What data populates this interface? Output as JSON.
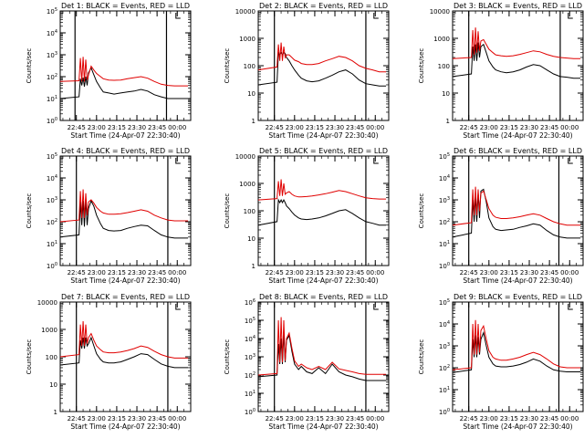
{
  "figure": {
    "xlabel": "Start Time (24-Apr-07 22:30:40)",
    "ylabel": "Counts/sec"
  },
  "style": {
    "events_color": "#000000",
    "lld_color": "#e00000",
    "background": "#ffffff"
  },
  "chart_data": [
    {
      "type": "line",
      "title": "Det 1: BLACK = Events, RED = LLD",
      "xlabel": "Start Time (24-Apr-07 22:30:40)",
      "ylabel": "Counts/sec",
      "yscale": "log",
      "ylim_exp": [
        0,
        5
      ],
      "ytick_style": "exp",
      "xlim": [
        "22:33",
        "00:10"
      ],
      "xticks": [
        "22:45",
        "23:00",
        "23:15",
        "23:30",
        "23:45",
        "00:00"
      ],
      "marker_lines": [
        "22:44",
        "23:52"
      ],
      "event_markers": [
        "23:59"
      ],
      "x_minutes": [
        0,
        14,
        15,
        16,
        17,
        18,
        19,
        20,
        21,
        23,
        25,
        27,
        30,
        32,
        36,
        40,
        45,
        50,
        55,
        60,
        65,
        70,
        75,
        80,
        85,
        90,
        95
      ],
      "series": [
        {
          "name": "Events",
          "color_key": "events",
          "values": [
            10,
            12,
            80,
            40,
            90,
            35,
            100,
            40,
            150,
            250,
            120,
            60,
            30,
            20,
            18,
            16,
            18,
            20,
            22,
            26,
            22,
            15,
            12,
            10,
            10,
            10,
            10
          ]
        },
        {
          "name": "LLD",
          "color_key": "lld",
          "values": [
            60,
            65,
            700,
            60,
            800,
            60,
            600,
            70,
            120,
            300,
            200,
            140,
            100,
            80,
            70,
            68,
            70,
            80,
            90,
            100,
            85,
            60,
            45,
            40,
            38,
            38,
            38
          ]
        }
      ]
    },
    {
      "type": "line",
      "title": "Det 2: BLACK = Events, RED = LLD",
      "xlabel": "Start Time (24-Apr-07 22:30:40)",
      "ylabel": "Counts/sec",
      "yscale": "log",
      "ylim_exp": [
        0,
        4
      ],
      "ytick_style": "plain",
      "xlim": [
        "22:33",
        "00:10"
      ],
      "xticks": [
        "22:45",
        "23:00",
        "23:15",
        "23:30",
        "23:45",
        "00:00"
      ],
      "marker_lines": [
        "22:45",
        "23:53"
      ],
      "event_markers": [
        "23:59"
      ],
      "x_minutes": [
        0,
        14,
        15,
        16,
        17,
        18,
        19,
        20,
        21,
        23,
        25,
        27,
        30,
        32,
        36,
        40,
        45,
        50,
        55,
        60,
        65,
        70,
        75,
        80,
        85,
        90,
        95
      ],
      "series": [
        {
          "name": "Events",
          "color_key": "events",
          "values": [
            20,
            25,
            300,
            250,
            300,
            250,
            300,
            280,
            200,
            150,
            100,
            70,
            45,
            35,
            28,
            26,
            28,
            35,
            45,
            60,
            70,
            50,
            30,
            22,
            20,
            18,
            18
          ]
        },
        {
          "name": "LLD",
          "color_key": "lld",
          "values": [
            70,
            90,
            600,
            150,
            700,
            150,
            500,
            200,
            250,
            250,
            200,
            160,
            140,
            120,
            110,
            110,
            120,
            150,
            180,
            220,
            200,
            150,
            100,
            80,
            70,
            60,
            60
          ]
        }
      ]
    },
    {
      "type": "line",
      "title": "Det 3: BLACK = Events, RED = LLD",
      "xlabel": "Start Time (24-Apr-07 22:30:40)",
      "ylabel": "Counts/sec",
      "yscale": "log",
      "ylim_exp": [
        0,
        4
      ],
      "ytick_style": "plain",
      "xlim": [
        "22:33",
        "00:10"
      ],
      "xticks": [
        "22:45",
        "23:00",
        "23:15",
        "23:30",
        "23:45",
        "00:00"
      ],
      "marker_lines": [
        "22:45",
        "23:53"
      ],
      "event_markers": [
        "23:59"
      ],
      "x_minutes": [
        0,
        14,
        15,
        16,
        17,
        18,
        19,
        20,
        21,
        23,
        25,
        27,
        30,
        32,
        36,
        40,
        45,
        50,
        55,
        60,
        65,
        70,
        75,
        80,
        85,
        90,
        95
      ],
      "series": [
        {
          "name": "Events",
          "color_key": "events",
          "values": [
            40,
            50,
            500,
            150,
            600,
            150,
            700,
            200,
            500,
            600,
            300,
            150,
            90,
            70,
            60,
            55,
            60,
            70,
            90,
            110,
            100,
            70,
            50,
            40,
            38,
            35,
            35
          ]
        },
        {
          "name": "LLD",
          "color_key": "lld",
          "values": [
            180,
            200,
            2000,
            250,
            2500,
            300,
            1800,
            350,
            800,
            900,
            600,
            400,
            300,
            250,
            230,
            220,
            230,
            260,
            300,
            350,
            320,
            260,
            220,
            200,
            190,
            180,
            180
          ]
        }
      ]
    },
    {
      "type": "line",
      "title": "Det 4: BLACK = Events, RED = LLD",
      "xlabel": "Start Time (24-Apr-07 22:30:40)",
      "ylabel": "Counts/sec",
      "yscale": "log",
      "ylim_exp": [
        0,
        5
      ],
      "ytick_style": "exp",
      "xlim": [
        "22:33",
        "00:10"
      ],
      "xticks": [
        "22:45",
        "23:00",
        "23:15",
        "23:30",
        "23:45",
        "00:00"
      ],
      "marker_lines": [
        "22:45",
        "23:53"
      ],
      "event_markers": [
        "23:59"
      ],
      "x_minutes": [
        0,
        14,
        15,
        16,
        17,
        18,
        19,
        20,
        21,
        23,
        25,
        27,
        30,
        32,
        36,
        40,
        45,
        50,
        55,
        60,
        65,
        70,
        75,
        80,
        85,
        90,
        95
      ],
      "series": [
        {
          "name": "Events",
          "color_key": "events",
          "values": [
            20,
            25,
            800,
            70,
            900,
            60,
            1000,
            70,
            400,
            900,
            500,
            200,
            80,
            50,
            40,
            38,
            40,
            50,
            60,
            70,
            65,
            40,
            25,
            20,
            18,
            18,
            18
          ]
        },
        {
          "name": "LLD",
          "color_key": "lld",
          "values": [
            100,
            120,
            2500,
            150,
            3000,
            150,
            2000,
            200,
            800,
            1000,
            700,
            450,
            300,
            250,
            220,
            220,
            230,
            260,
            300,
            350,
            300,
            200,
            150,
            120,
            110,
            110,
            110
          ]
        }
      ]
    },
    {
      "type": "line",
      "title": "Det 5: BLACK = Events, RED = LLD",
      "xlabel": "Start Time (24-Apr-07 22:30:40)",
      "ylabel": "Counts/sec",
      "yscale": "log",
      "ylim_exp": [
        0,
        4
      ],
      "ytick_style": "plain",
      "xlim": [
        "22:33",
        "00:10"
      ],
      "xticks": [
        "22:45",
        "23:00",
        "23:15",
        "23:30",
        "23:45",
        "00:00"
      ],
      "marker_lines": [
        "22:45",
        "23:53"
      ],
      "event_markers": [
        "23:59"
      ],
      "x_minutes": [
        0,
        14,
        15,
        16,
        17,
        18,
        19,
        20,
        21,
        23,
        25,
        27,
        30,
        32,
        36,
        40,
        45,
        50,
        55,
        60,
        65,
        70,
        75,
        80,
        85,
        90,
        95
      ],
      "series": [
        {
          "name": "Events",
          "color_key": "events",
          "values": [
            30,
            40,
            250,
            200,
            250,
            200,
            250,
            200,
            150,
            120,
            90,
            70,
            55,
            50,
            48,
            50,
            55,
            65,
            80,
            100,
            110,
            80,
            55,
            40,
            35,
            30,
            30
          ]
        },
        {
          "name": "LLD",
          "color_key": "lld",
          "values": [
            250,
            280,
            1200,
            350,
            1400,
            350,
            1000,
            400,
            450,
            500,
            400,
            350,
            320,
            320,
            330,
            350,
            380,
            420,
            480,
            550,
            500,
            420,
            350,
            300,
            280,
            270,
            270
          ]
        }
      ]
    },
    {
      "type": "line",
      "title": "Det 6: BLACK = Events, RED = LLD",
      "xlabel": "Start Time (24-Apr-07 22:30:40)",
      "ylabel": "Counts/sec",
      "yscale": "log",
      "ylim_exp": [
        0,
        5
      ],
      "ytick_style": "exp",
      "xlim": [
        "22:33",
        "00:10"
      ],
      "xticks": [
        "22:45",
        "23:00",
        "23:15",
        "23:30",
        "23:45",
        "00:00"
      ],
      "marker_lines": [
        "22:45",
        "23:52"
      ],
      "event_markers": [
        "23:59"
      ],
      "x_minutes": [
        0,
        14,
        15,
        16,
        17,
        18,
        19,
        20,
        21,
        23,
        25,
        27,
        30,
        32,
        36,
        40,
        45,
        50,
        55,
        60,
        65,
        70,
        75,
        80,
        85,
        90,
        95
      ],
      "series": [
        {
          "name": "Events",
          "color_key": "events",
          "values": [
            20,
            30,
            1000,
            100,
            1500,
            100,
            2000,
            150,
            2500,
            3000,
            800,
            150,
            60,
            45,
            40,
            42,
            45,
            55,
            65,
            80,
            70,
            40,
            25,
            20,
            18,
            18,
            18
          ]
        },
        {
          "name": "LLD",
          "color_key": "lld",
          "values": [
            70,
            90,
            3000,
            200,
            4000,
            200,
            3000,
            300,
            2000,
            2500,
            1000,
            400,
            200,
            160,
            140,
            140,
            150,
            170,
            200,
            230,
            200,
            140,
            100,
            80,
            70,
            70,
            70
          ]
        }
      ]
    },
    {
      "type": "line",
      "title": "Det 7: BLACK = Events, RED = LLD",
      "xlabel": "Start Time (24-Apr-07 22:30:40)",
      "ylabel": "Counts/sec",
      "yscale": "log",
      "ylim_exp": [
        0,
        4
      ],
      "ytick_style": "plain",
      "xlim": [
        "22:33",
        "00:10"
      ],
      "xticks": [
        "22:45",
        "23:00",
        "23:15",
        "23:30",
        "23:45",
        "00:00"
      ],
      "marker_lines": [
        "22:45",
        "23:53"
      ],
      "event_markers": [
        "23:59"
      ],
      "x_minutes": [
        0,
        14,
        15,
        16,
        17,
        18,
        19,
        20,
        21,
        23,
        25,
        27,
        30,
        32,
        36,
        40,
        45,
        50,
        55,
        60,
        65,
        70,
        75,
        80,
        85,
        90,
        95
      ],
      "series": [
        {
          "name": "Events",
          "color_key": "events",
          "values": [
            50,
            60,
            400,
            200,
            500,
            200,
            500,
            250,
            300,
            500,
            250,
            130,
            80,
            65,
            60,
            60,
            65,
            80,
            100,
            130,
            120,
            80,
            55,
            45,
            40,
            40,
            40
          ]
        },
        {
          "name": "LLD",
          "color_key": "lld",
          "values": [
            100,
            120,
            1500,
            250,
            2000,
            250,
            1500,
            300,
            500,
            700,
            400,
            250,
            180,
            150,
            140,
            140,
            150,
            170,
            200,
            250,
            220,
            160,
            120,
            100,
            90,
            90,
            90
          ]
        }
      ]
    },
    {
      "type": "line",
      "title": "Det 8: BLACK = Events, RED = LLD",
      "xlabel": "Start Time (24-Apr-07 22:30:40)",
      "ylabel": "Counts/sec",
      "yscale": "log",
      "ylim_exp": [
        0,
        6
      ],
      "ytick_style": "exp",
      "xlim": [
        "22:33",
        "00:10"
      ],
      "xticks": [
        "22:45",
        "23:00",
        "23:15",
        "23:30",
        "23:45",
        "00:00"
      ],
      "marker_lines": [
        "22:45",
        "23:53"
      ],
      "event_markers": [
        "23:59"
      ],
      "x_minutes": [
        0,
        14,
        15,
        16,
        17,
        18,
        19,
        20,
        21,
        23,
        25,
        27,
        30,
        32,
        36,
        40,
        45,
        50,
        55,
        60,
        65,
        70,
        75,
        80,
        85,
        90,
        95
      ],
      "series": [
        {
          "name": "Events",
          "color_key": "events",
          "values": [
            80,
            100,
            5000,
            400,
            10000,
            400,
            20000,
            500,
            8000,
            15000,
            2000,
            400,
            200,
            300,
            150,
            120,
            250,
            120,
            400,
            150,
            100,
            80,
            60,
            50,
            50,
            50,
            50
          ]
        },
        {
          "name": "LLD",
          "color_key": "lld",
          "values": [
            100,
            120,
            100000,
            500,
            150000,
            500,
            100000,
            600,
            10000,
            20000,
            3000,
            600,
            300,
            400,
            250,
            200,
            300,
            200,
            500,
            220,
            180,
            150,
            120,
            110,
            110,
            110,
            110
          ]
        }
      ]
    },
    {
      "type": "line",
      "title": "Det 9: BLACK = Events, RED = LLD",
      "xlabel": "Start Time (24-Apr-07 22:30:40)",
      "ylabel": "Counts/sec",
      "yscale": "log",
      "ylim_exp": [
        0,
        5
      ],
      "ytick_style": "exp",
      "xlim": [
        "22:33",
        "00:10"
      ],
      "xticks": [
        "22:45",
        "23:00",
        "23:15",
        "23:30",
        "23:45",
        "00:00"
      ],
      "marker_lines": [
        "22:45",
        "23:52"
      ],
      "event_markers": [
        "23:59"
      ],
      "x_minutes": [
        0,
        14,
        15,
        16,
        17,
        18,
        19,
        20,
        21,
        23,
        25,
        27,
        30,
        32,
        36,
        40,
        45,
        50,
        55,
        60,
        65,
        70,
        75,
        80,
        85,
        90,
        95
      ],
      "series": [
        {
          "name": "Events",
          "color_key": "events",
          "values": [
            60,
            80,
            2000,
            300,
            3000,
            300,
            2500,
            400,
            2000,
            4000,
            1000,
            300,
            150,
            120,
            110,
            110,
            120,
            140,
            180,
            250,
            200,
            120,
            80,
            70,
            65,
            65,
            65
          ]
        },
        {
          "name": "LLD",
          "color_key": "lld",
          "values": [
            80,
            100,
            10000,
            400,
            15000,
            400,
            10000,
            500,
            5000,
            8000,
            2000,
            600,
            300,
            250,
            220,
            220,
            250,
            300,
            400,
            500,
            400,
            250,
            150,
            110,
            100,
            100,
            100
          ]
        }
      ]
    }
  ]
}
